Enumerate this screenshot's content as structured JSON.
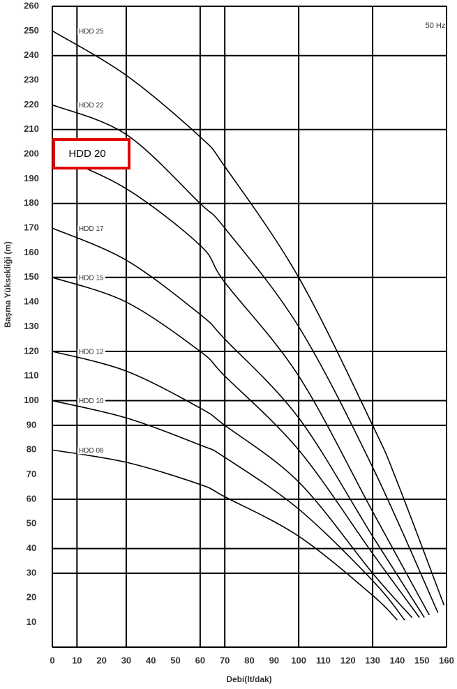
{
  "chart_data": {
    "type": "line",
    "x_label": "Debi(lt/dak)",
    "y_label": "Başma Yüksekliği (m)",
    "annotation": "50 Hz",
    "xlim": [
      0,
      160
    ],
    "ylim": [
      0,
      260
    ],
    "xticks": [
      0,
      10,
      20,
      30,
      40,
      50,
      60,
      70,
      80,
      90,
      100,
      110,
      120,
      130,
      140,
      150,
      160
    ],
    "yticks": [
      10,
      20,
      30,
      40,
      50,
      60,
      70,
      80,
      90,
      100,
      110,
      120,
      130,
      140,
      150,
      160,
      170,
      180,
      190,
      200,
      210,
      220,
      230,
      240,
      250,
      260
    ],
    "xgrid": [
      0,
      10,
      30,
      60,
      70,
      100,
      130,
      160
    ],
    "ygrid": [
      0,
      30,
      40,
      60,
      90,
      100,
      120,
      150,
      180,
      210,
      240,
      260
    ],
    "color": "#000000",
    "highlight_color": "#e00000",
    "series": [
      {
        "name": "HDD 25",
        "x": [
          0,
          30,
          60,
          70,
          100,
          130,
          140,
          159
        ],
        "values": [
          250,
          232,
          207,
          195,
          150,
          90,
          67,
          17
        ]
      },
      {
        "name": "HDD 22",
        "x": [
          0,
          30,
          60,
          70,
          100,
          130,
          156.5
        ],
        "values": [
          220,
          208,
          180,
          170,
          130,
          73,
          14
        ]
      },
      {
        "name": "HDD 20",
        "x": [
          0,
          30,
          60,
          70,
          100,
          130,
          153
        ],
        "values": [
          200,
          186,
          163,
          148,
          110,
          55,
          13
        ],
        "highlight": true
      },
      {
        "name": "HDD 17",
        "x": [
          0,
          30,
          60,
          70,
          100,
          130,
          151
        ],
        "values": [
          170,
          157,
          135,
          125,
          93,
          45,
          12
        ]
      },
      {
        "name": "HDD 15",
        "x": [
          0,
          30,
          60,
          70,
          100,
          130,
          149
        ],
        "values": [
          150,
          140,
          120,
          110,
          80,
          38,
          12
        ]
      },
      {
        "name": "HDD 12",
        "x": [
          0,
          30,
          60,
          70,
          100,
          130,
          146
        ],
        "values": [
          120,
          112,
          97,
          90,
          67,
          30,
          12
        ]
      },
      {
        "name": "HDD 10",
        "x": [
          0,
          30,
          60,
          70,
          100,
          130,
          143
        ],
        "values": [
          100,
          93,
          82,
          77,
          56,
          27,
          11
        ]
      },
      {
        "name": "HDD 08",
        "x": [
          0,
          30,
          60,
          70,
          100,
          130,
          140
        ],
        "values": [
          80,
          75,
          66,
          61,
          45,
          21,
          11
        ]
      }
    ]
  }
}
